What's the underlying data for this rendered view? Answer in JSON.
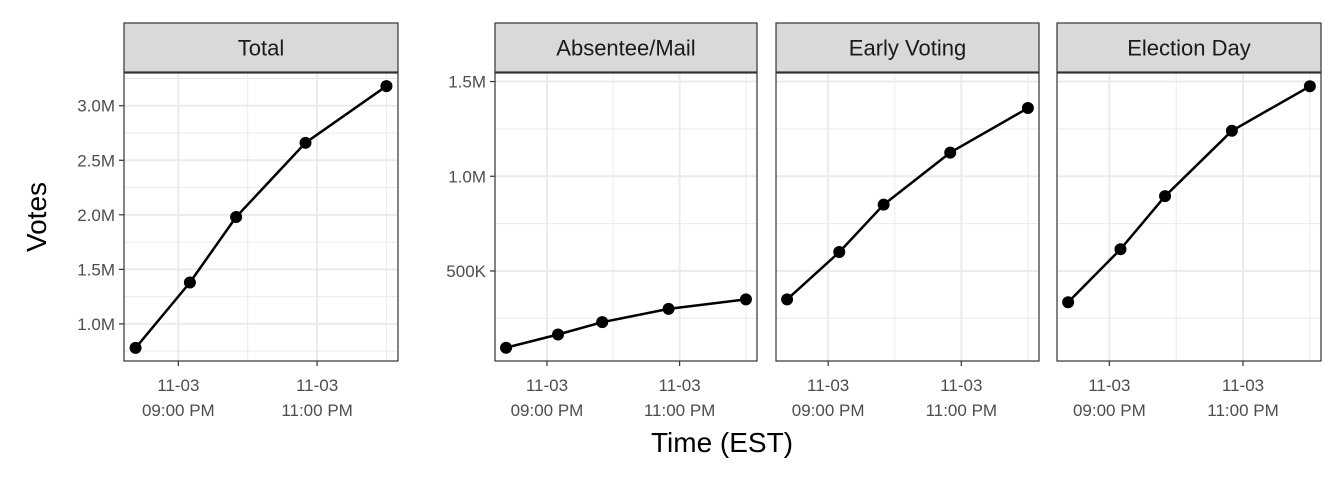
{
  "colors": {
    "line": "#000000",
    "strip_bg": "#d9d9d9",
    "panel_border": "#333333",
    "grid": "#ebebeb"
  },
  "chart_data": [
    {
      "type": "line",
      "title": "Total",
      "xlabel": "Time (EST)",
      "ylabel": "Votes",
      "x": [
        "2020-11-03 20:23",
        "2020-11-03 21:10",
        "2020-11-03 21:50",
        "2020-11-03 22:50",
        "2020-11-04 00:00"
      ],
      "values": [
        780000,
        1380000,
        1980000,
        2660000,
        3180000
      ],
      "yticks": [
        1000000,
        1500000,
        2000000,
        2500000,
        3000000
      ],
      "ytick_labels": [
        "1.0M",
        "1.5M",
        "2.0M",
        "2.5M",
        "3.0M"
      ],
      "xticks": [
        "2020-11-03 21:00",
        "2020-11-03 23:00"
      ],
      "xtick_labels": [
        [
          "11-03",
          "09:00 PM"
        ],
        [
          "11-03",
          "11:00 PM"
        ]
      ],
      "ylim": [
        660000,
        3300000
      ],
      "grid": true
    },
    {
      "type": "line",
      "title": "Absentee/Mail",
      "x": [
        "2020-11-03 20:23",
        "2020-11-03 21:10",
        "2020-11-03 21:50",
        "2020-11-03 22:50",
        "2020-11-04 00:00"
      ],
      "values": [
        95000,
        165000,
        230000,
        300000,
        350000
      ],
      "yticks": [
        500000,
        1000000,
        1500000
      ],
      "ytick_labels": [
        "500K",
        "1.0M",
        "1.5M"
      ],
      "xticks": [
        "2020-11-03 21:00",
        "2020-11-03 23:00"
      ],
      "xtick_labels": [
        [
          "11-03",
          "09:00 PM"
        ],
        [
          "11-03",
          "11:00 PM"
        ]
      ],
      "ylim": [
        25000,
        1545000
      ],
      "grid": true
    },
    {
      "type": "line",
      "title": "Early Voting",
      "x": [
        "2020-11-03 20:23",
        "2020-11-03 21:10",
        "2020-11-03 21:50",
        "2020-11-03 22:50",
        "2020-11-04 00:00"
      ],
      "values": [
        350000,
        600000,
        850000,
        1125000,
        1360000
      ],
      "xticks": [
        "2020-11-03 21:00",
        "2020-11-03 23:00"
      ],
      "xtick_labels": [
        [
          "11-03",
          "09:00 PM"
        ],
        [
          "11-03",
          "11:00 PM"
        ]
      ],
      "ylim": [
        25000,
        1545000
      ],
      "grid": true
    },
    {
      "type": "line",
      "title": "Election Day",
      "x": [
        "2020-11-03 20:23",
        "2020-11-03 21:10",
        "2020-11-03 21:50",
        "2020-11-03 22:50",
        "2020-11-04 00:00"
      ],
      "values": [
        335000,
        615000,
        895000,
        1240000,
        1475000
      ],
      "xticks": [
        "2020-11-03 21:00",
        "2020-11-03 23:00"
      ],
      "xtick_labels": [
        [
          "11-03",
          "09:00 PM"
        ],
        [
          "11-03",
          "11:00 PM"
        ]
      ],
      "ylim": [
        25000,
        1545000
      ],
      "grid": true
    }
  ]
}
